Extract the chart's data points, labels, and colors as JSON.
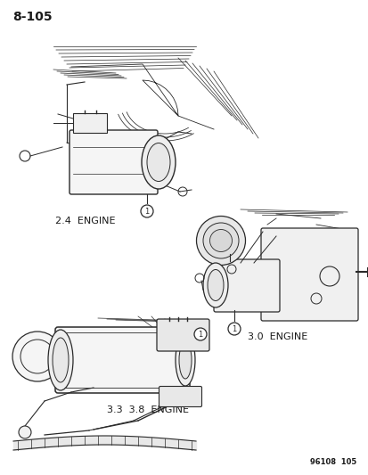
{
  "page_number": "8-105",
  "footer": "96108  105",
  "bg_color": "#ffffff",
  "text_color": "#1a1a1a",
  "line_color": "#2a2a2a",
  "diagram1_label": "2.4  ENGINE",
  "diagram2_label": "3.0  ENGINE",
  "diagram3_label": "3.3  3.8  ENGINE",
  "callout_num": "1",
  "figsize": [
    4.14,
    5.33
  ],
  "dpi": 100
}
